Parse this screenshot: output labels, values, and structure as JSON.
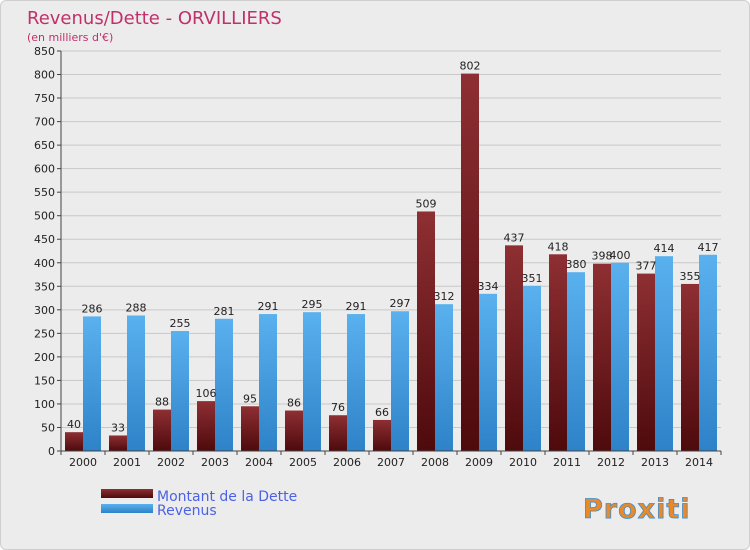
{
  "chart_data": {
    "type": "bar",
    "title": "Revenus/Dette - ORVILLIERS",
    "subtitle": "(en milliers d'€)",
    "categories": [
      "2000",
      "2001",
      "2002",
      "2003",
      "2004",
      "2005",
      "2006",
      "2007",
      "2008",
      "2009",
      "2010",
      "2011",
      "2012",
      "2013",
      "2014"
    ],
    "series": [
      {
        "name": "Montant de la Dette",
        "color": "#7a1c1e",
        "values": [
          40,
          33,
          88,
          106,
          95,
          86,
          76,
          66,
          509,
          802,
          437,
          418,
          398,
          377,
          355
        ]
      },
      {
        "name": "Revenus",
        "color": "#4aa3e6",
        "values": [
          286,
          288,
          255,
          281,
          291,
          295,
          291,
          297,
          312,
          334,
          351,
          380,
          400,
          414,
          417
        ]
      }
    ],
    "ylim": [
      0,
      850
    ],
    "yticks": [
      0,
      50,
      100,
      150,
      200,
      250,
      300,
      350,
      400,
      450,
      500,
      550,
      600,
      650,
      700,
      750,
      800,
      850
    ],
    "grid": true,
    "legend_position": "bottom-left",
    "brand": "Proxiti"
  }
}
